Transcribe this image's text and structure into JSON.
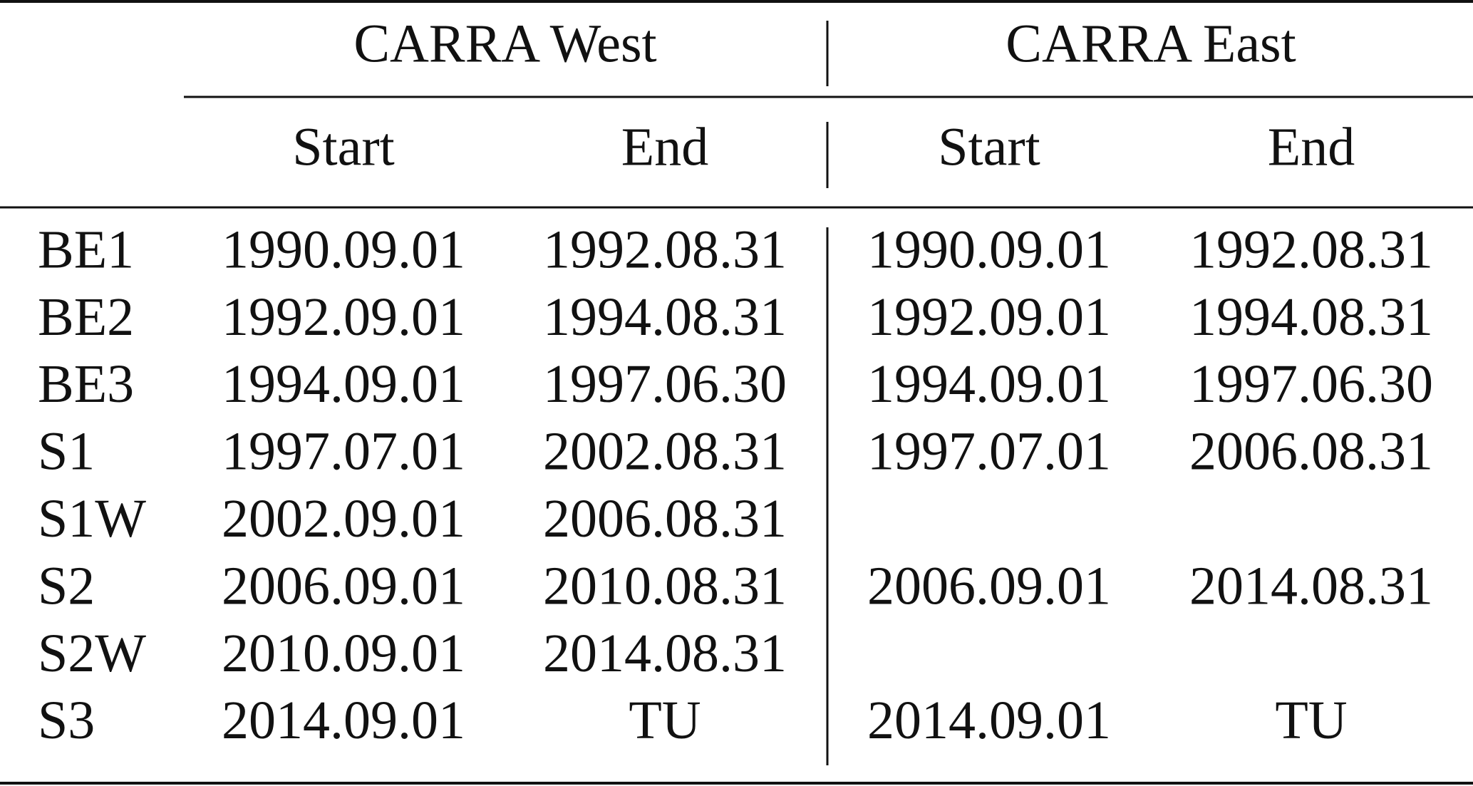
{
  "table": {
    "groups": [
      "CARRA West",
      "CARRA East"
    ],
    "subheaders": [
      "Start",
      "End",
      "Start",
      "End"
    ],
    "rows": [
      [
        "BE1",
        "1990.09.01",
        "1992.08.31",
        "1990.09.01",
        "1992.08.31"
      ],
      [
        "BE2",
        "1992.09.01",
        "1994.08.31",
        "1992.09.01",
        "1994.08.31"
      ],
      [
        "BE3",
        "1994.09.01",
        "1997.06.30",
        "1994.09.01",
        "1997.06.30"
      ],
      [
        "S1",
        "1997.07.01",
        "2002.08.31",
        "1997.07.01",
        "2006.08.31"
      ],
      [
        "S1W",
        "2002.09.01",
        "2006.08.31",
        null,
        null
      ],
      [
        "S2",
        "2006.09.01",
        "2010.08.31",
        "2006.09.01",
        "2014.08.31"
      ],
      [
        "S2W",
        "2010.09.01",
        "2014.08.31",
        null,
        null
      ],
      [
        "S3",
        "2014.09.01",
        "TU",
        "2014.09.01",
        "TU"
      ]
    ]
  }
}
